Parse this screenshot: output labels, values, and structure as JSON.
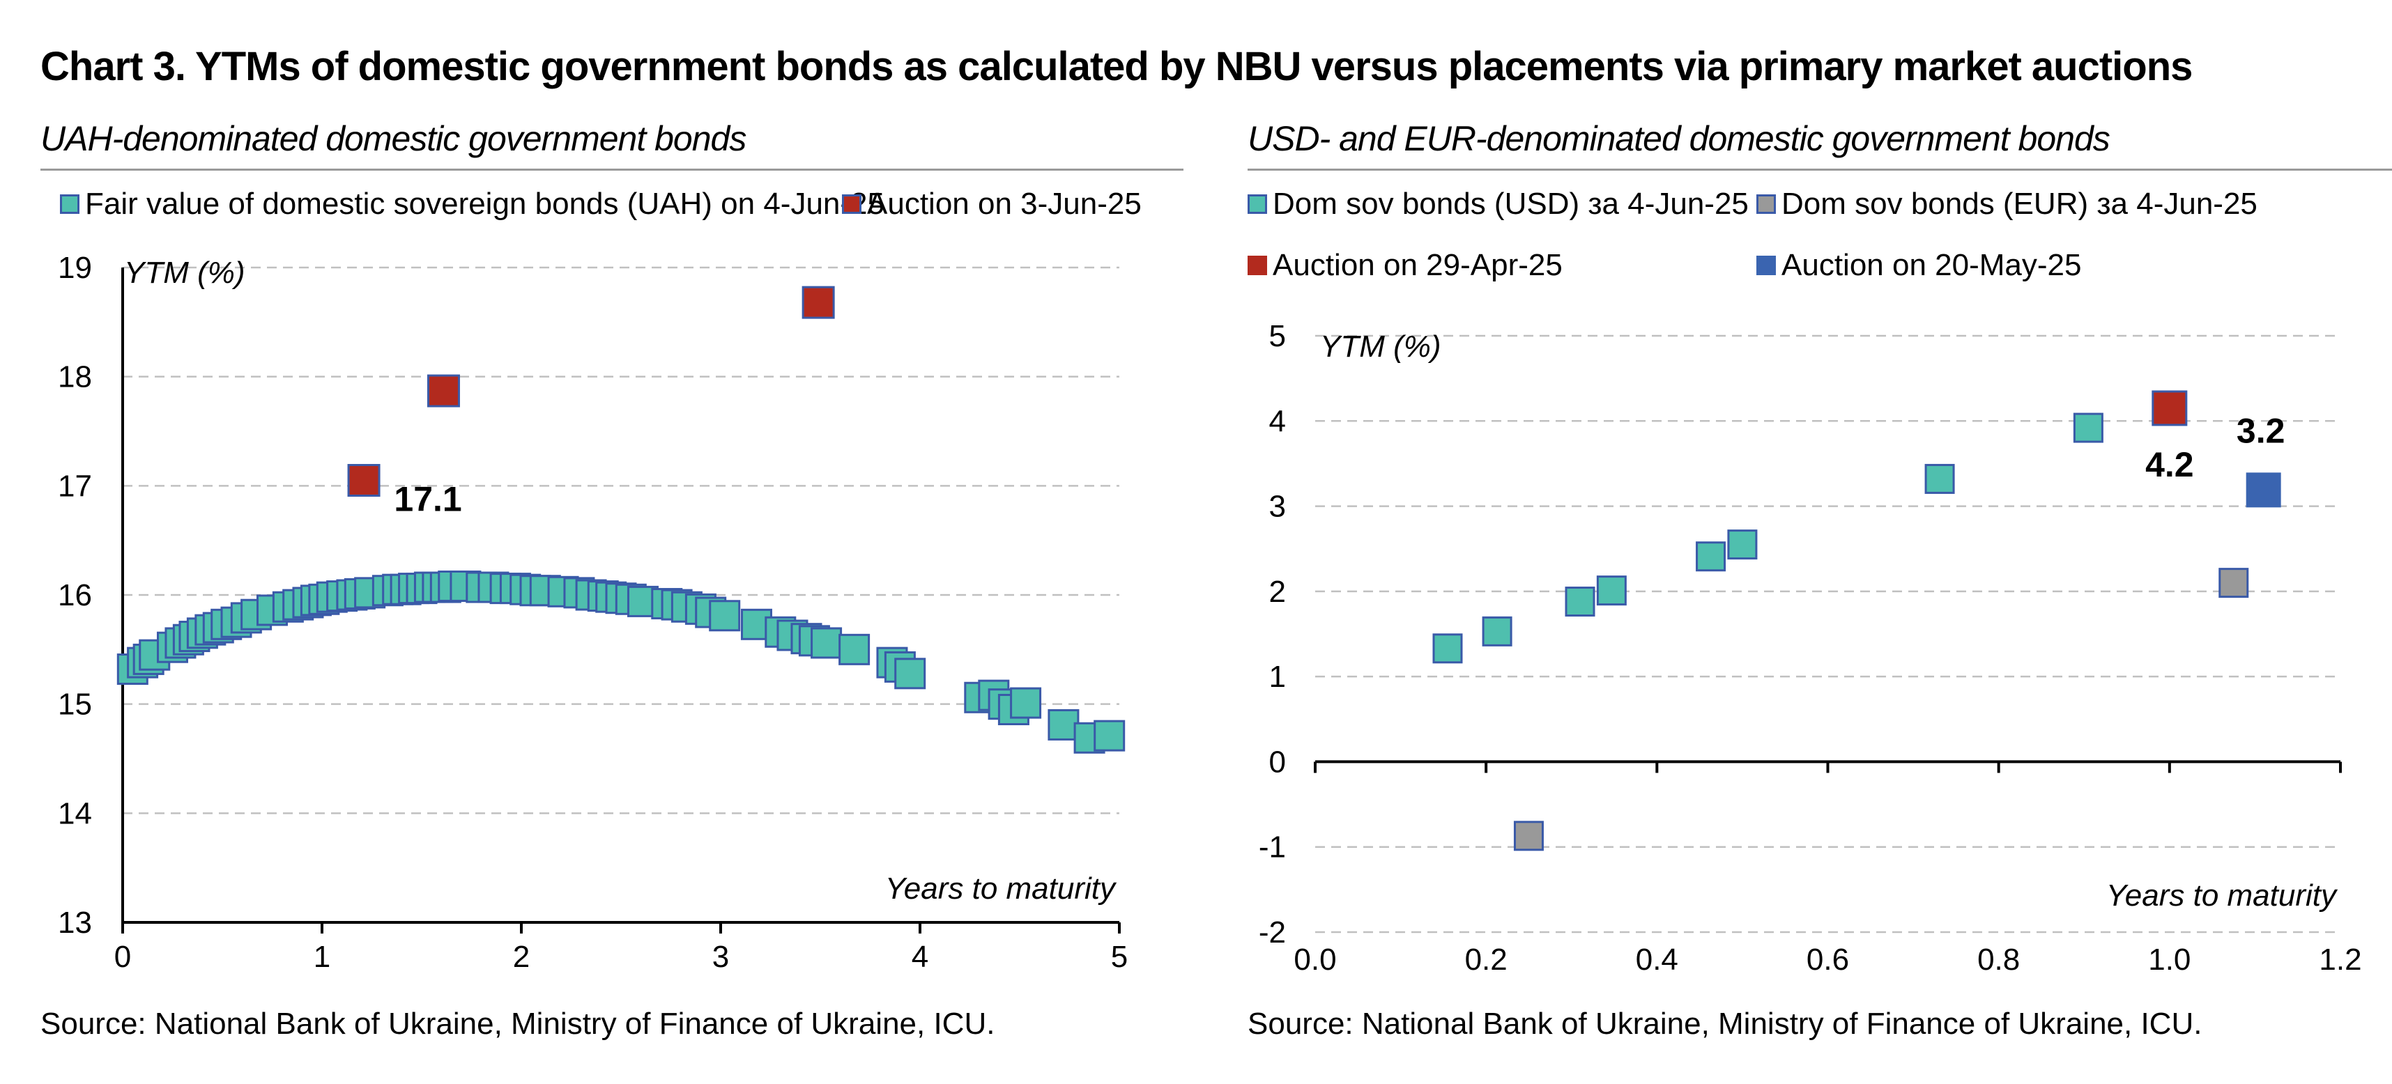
{
  "title": "Chart 3. YTMs of domestic government bonds as calculated by NBU versus placements via primary market auctions",
  "colors": {
    "teal": "#4fbfae",
    "border": "#3a5aa8",
    "red": "#b22a1e",
    "grey": "#999999",
    "blue": "#3a64b0",
    "grid": "#c0c0c0"
  },
  "chart_data": [
    {
      "type": "scatter",
      "subtitle": "UAH-denominated domestic government bonds",
      "ylabel": "YTM (%)",
      "xlabel": "Years to maturity",
      "xlim": [
        0,
        5
      ],
      "ylim": [
        13,
        19
      ],
      "xticks": [
        0,
        1,
        2,
        3,
        4,
        5
      ],
      "yticks": [
        13,
        14,
        15,
        16,
        17,
        18,
        19
      ],
      "grid": "horizontal dashed",
      "legend_placement": "top",
      "source": "Source: National Bank of Ukraine, Ministry of Finance of Ukraine, ICU.",
      "series": [
        {
          "name": "Fair value of domestic sovereign bonds (UAH) on 4-Jun-25",
          "marker": "teal",
          "points": [
            [
              0.05,
              15.32
            ],
            [
              0.1,
              15.38
            ],
            [
              0.13,
              15.41
            ],
            [
              0.16,
              15.45
            ],
            [
              0.25,
              15.52
            ],
            [
              0.29,
              15.56
            ],
            [
              0.33,
              15.59
            ],
            [
              0.36,
              15.62
            ],
            [
              0.4,
              15.65
            ],
            [
              0.44,
              15.68
            ],
            [
              0.48,
              15.7
            ],
            [
              0.52,
              15.73
            ],
            [
              0.57,
              15.75
            ],
            [
              0.62,
              15.79
            ],
            [
              0.67,
              15.82
            ],
            [
              0.75,
              15.86
            ],
            [
              0.83,
              15.89
            ],
            [
              0.88,
              15.91
            ],
            [
              0.93,
              15.93
            ],
            [
              0.97,
              15.95
            ],
            [
              1.01,
              15.96
            ],
            [
              1.05,
              15.98
            ],
            [
              1.1,
              15.99
            ],
            [
              1.15,
              16.0
            ],
            [
              1.19,
              16.01
            ],
            [
              1.24,
              16.02
            ],
            [
              1.33,
              16.04
            ],
            [
              1.38,
              16.05
            ],
            [
              1.42,
              16.05
            ],
            [
              1.46,
              16.06
            ],
            [
              1.5,
              16.06
            ],
            [
              1.54,
              16.07
            ],
            [
              1.58,
              16.07
            ],
            [
              1.62,
              16.07
            ],
            [
              1.66,
              16.08
            ],
            [
              1.72,
              16.08
            ],
            [
              1.8,
              16.07
            ],
            [
              1.86,
              16.07
            ],
            [
              1.92,
              16.06
            ],
            [
              1.97,
              16.06
            ],
            [
              2.02,
              16.05
            ],
            [
              2.07,
              16.04
            ],
            [
              2.12,
              16.04
            ],
            [
              2.21,
              16.03
            ],
            [
              2.29,
              16.02
            ],
            [
              2.35,
              16.0
            ],
            [
              2.41,
              15.99
            ],
            [
              2.45,
              15.98
            ],
            [
              2.5,
              15.97
            ],
            [
              2.55,
              15.96
            ],
            [
              2.61,
              15.94
            ],
            [
              2.73,
              15.92
            ],
            [
              2.78,
              15.91
            ],
            [
              2.83,
              15.89
            ],
            [
              2.9,
              15.87
            ],
            [
              2.95,
              15.84
            ],
            [
              3.02,
              15.81
            ],
            [
              3.18,
              15.73
            ],
            [
              3.3,
              15.66
            ],
            [
              3.36,
              15.63
            ],
            [
              3.43,
              15.6
            ],
            [
              3.47,
              15.58
            ],
            [
              3.53,
              15.56
            ],
            [
              3.67,
              15.5
            ],
            [
              3.86,
              15.38
            ],
            [
              3.9,
              15.34
            ],
            [
              3.95,
              15.28
            ],
            [
              4.3,
              15.06
            ],
            [
              4.37,
              15.08
            ],
            [
              4.42,
              15.0
            ],
            [
              4.47,
              14.95
            ],
            [
              4.53,
              15.01
            ],
            [
              4.72,
              14.81
            ],
            [
              4.85,
              14.69
            ],
            [
              4.95,
              14.71
            ]
          ]
        },
        {
          "name": "Auction on 3-Jun-25",
          "marker": "red",
          "points": [
            [
              1.21,
              17.05
            ],
            [
              1.61,
              17.87
            ],
            [
              3.49,
              18.68
            ]
          ]
        }
      ],
      "annotations": [
        {
          "text": "17.1",
          "x": 1.21,
          "y": 17.05
        }
      ]
    },
    {
      "type": "scatter",
      "subtitle": "USD- and EUR-denominated domestic government bonds",
      "ylabel": "YTM (%)",
      "xlabel": "Years to maturity",
      "xlim": [
        0.0,
        1.2
      ],
      "ylim": [
        -2,
        5
      ],
      "xticks": [
        "0.0",
        "0.2",
        "0.4",
        "0.6",
        "0.8",
        "1.0",
        "1.2"
      ],
      "yticks": [
        -2,
        -1,
        0,
        1,
        2,
        3,
        4,
        5
      ],
      "grid": "horizontal dashed",
      "legend_placement": "top",
      "source": "Source: National Bank of Ukraine, Ministry of Finance of Ukraine, ICU.",
      "series": [
        {
          "name": "Dom sov bonds (USD) за 4-Jun-25",
          "marker": "teal",
          "points": [
            [
              0.155,
              1.33
            ],
            [
              0.213,
              1.53
            ],
            [
              0.31,
              1.88
            ],
            [
              0.347,
              2.01
            ],
            [
              0.463,
              2.41
            ],
            [
              0.5,
              2.55
            ],
            [
              0.731,
              3.32
            ],
            [
              0.905,
              3.92
            ]
          ]
        },
        {
          "name": "Dom sov bonds (EUR) за 4-Jun-25",
          "marker": "grey",
          "points": [
            [
              0.25,
              -0.87
            ],
            [
              1.075,
              2.1
            ]
          ]
        },
        {
          "name": "Auction on 29-Apr-25",
          "marker": "red",
          "points": [
            [
              1.0,
              4.15
            ]
          ]
        },
        {
          "name": "Auction on 20-May-25",
          "marker": "blue",
          "points": [
            [
              1.11,
              3.19
            ]
          ]
        }
      ],
      "annotations": [
        {
          "text": "4.2",
          "x": 1.0,
          "y": 4.15
        },
        {
          "text": "3.2",
          "x": 1.11,
          "y": 3.19
        }
      ]
    }
  ]
}
